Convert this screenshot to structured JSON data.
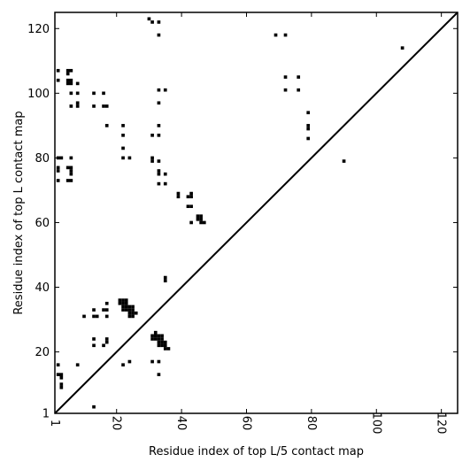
{
  "chart_data": {
    "type": "scatter",
    "xlabel": "Residue index of top L/5 contact map",
    "ylabel": "Residue index of top L contact map",
    "xlim": [
      1,
      125
    ],
    "ylim": [
      1,
      125
    ],
    "x_ticks": [
      1,
      20,
      40,
      60,
      80,
      100,
      120
    ],
    "y_ticks": [
      1,
      20,
      40,
      60,
      80,
      100,
      120
    ],
    "x_tick_labels_rotated": true,
    "diagonal_line": true,
    "grid": false,
    "colors": {
      "marks": "#000000",
      "background": "#ffffff"
    },
    "upper_triangle_points": [
      [
        30,
        123
      ],
      [
        31,
        122
      ],
      [
        33,
        122
      ],
      [
        33,
        118
      ],
      [
        69,
        118
      ],
      [
        72,
        118
      ],
      [
        108,
        114
      ],
      [
        2,
        107
      ],
      [
        5,
        107
      ],
      [
        6,
        107
      ],
      [
        5,
        106
      ],
      [
        2,
        104
      ],
      [
        5,
        104
      ],
      [
        6,
        104
      ],
      [
        5,
        103
      ],
      [
        6,
        103
      ],
      [
        8,
        103
      ],
      [
        6,
        100
      ],
      [
        8,
        100
      ],
      [
        13,
        100
      ],
      [
        16,
        100
      ],
      [
        33,
        101
      ],
      [
        35,
        101
      ],
      [
        72,
        101
      ],
      [
        76,
        101
      ],
      [
        72,
        105
      ],
      [
        76,
        105
      ],
      [
        6,
        96
      ],
      [
        8,
        96
      ],
      [
        8,
        97
      ],
      [
        13,
        96
      ],
      [
        16,
        96
      ],
      [
        17,
        96
      ],
      [
        33,
        97
      ],
      [
        17,
        90
      ],
      [
        22,
        90
      ],
      [
        33,
        90
      ],
      [
        79,
        94
      ],
      [
        79,
        90
      ],
      [
        79,
        89
      ],
      [
        79,
        86
      ],
      [
        22,
        87
      ],
      [
        31,
        87
      ],
      [
        33,
        87
      ],
      [
        22,
        83
      ],
      [
        2,
        80
      ],
      [
        3,
        80
      ],
      [
        6,
        80
      ],
      [
        22,
        80
      ],
      [
        24,
        80
      ],
      [
        31,
        80
      ],
      [
        31,
        79
      ],
      [
        33,
        79
      ],
      [
        90,
        79
      ],
      [
        2,
        77
      ],
      [
        2,
        76
      ],
      [
        5,
        77
      ],
      [
        6,
        77
      ],
      [
        6,
        76
      ],
      [
        6,
        75
      ],
      [
        33,
        76
      ],
      [
        33,
        75
      ],
      [
        35,
        75
      ],
      [
        2,
        73
      ],
      [
        5,
        73
      ],
      [
        6,
        73
      ],
      [
        33,
        72
      ],
      [
        35,
        72
      ],
      [
        39,
        69
      ],
      [
        39,
        68
      ],
      [
        42,
        68
      ],
      [
        43,
        68
      ],
      [
        43,
        69
      ],
      [
        42,
        65
      ],
      [
        43,
        65
      ],
      [
        45,
        62
      ],
      [
        46,
        62
      ],
      [
        45,
        61
      ],
      [
        46,
        61
      ],
      [
        46,
        60
      ],
      [
        47,
        60
      ],
      [
        43,
        60
      ],
      [
        35,
        43
      ],
      [
        35,
        42
      ]
    ],
    "lower_triangle_points": [
      [
        21,
        36
      ],
      [
        22,
        36
      ],
      [
        23,
        36
      ],
      [
        21,
        35
      ],
      [
        22,
        35
      ],
      [
        23,
        35
      ],
      [
        17,
        35
      ],
      [
        22,
        34
      ],
      [
        23,
        34
      ],
      [
        24,
        34
      ],
      [
        25,
        34
      ],
      [
        22,
        33
      ],
      [
        23,
        33
      ],
      [
        24,
        33
      ],
      [
        25,
        33
      ],
      [
        16,
        33
      ],
      [
        17,
        33
      ],
      [
        13,
        33
      ],
      [
        24,
        32
      ],
      [
        25,
        32
      ],
      [
        26,
        32
      ],
      [
        24,
        31
      ],
      [
        25,
        31
      ],
      [
        10,
        31
      ],
      [
        13,
        31
      ],
      [
        14,
        31
      ],
      [
        17,
        31
      ],
      [
        32,
        26
      ],
      [
        31,
        25
      ],
      [
        32,
        25
      ],
      [
        33,
        25
      ],
      [
        34,
        25
      ],
      [
        31,
        24
      ],
      [
        32,
        24
      ],
      [
        33,
        24
      ],
      [
        34,
        24
      ],
      [
        33,
        23
      ],
      [
        34,
        23
      ],
      [
        35,
        23
      ],
      [
        33,
        22
      ],
      [
        34,
        22
      ],
      [
        35,
        22
      ],
      [
        35,
        21
      ],
      [
        36,
        21
      ],
      [
        13,
        24
      ],
      [
        13,
        22
      ],
      [
        16,
        22
      ],
      [
        17,
        23
      ],
      [
        17,
        24
      ],
      [
        31,
        17
      ],
      [
        33,
        17
      ],
      [
        24,
        17
      ],
      [
        22,
        16
      ],
      [
        8,
        16
      ],
      [
        2,
        16
      ],
      [
        2,
        13
      ],
      [
        3,
        13
      ],
      [
        3,
        12
      ],
      [
        3,
        10
      ],
      [
        3,
        9
      ],
      [
        33,
        13
      ],
      [
        13,
        3
      ]
    ]
  }
}
